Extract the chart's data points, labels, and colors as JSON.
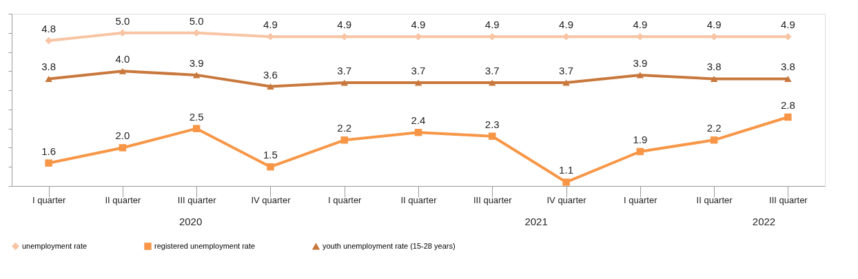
{
  "chart_data": {
    "type": "line",
    "categories": [
      "I quarter",
      "II quarter",
      "III quarter",
      "IV quarter",
      "I quarter",
      "II quarter",
      "III quarter",
      "IV quarter",
      "I quarter",
      "II quarter",
      "III quarter"
    ],
    "series": [
      {
        "name": "unemployment rate",
        "color": "#f8c4a4",
        "marker": "diamond",
        "values": [
          4.8,
          5.0,
          5.0,
          4.9,
          4.9,
          4.9,
          4.9,
          4.9,
          4.9,
          4.9,
          4.9
        ],
        "value_labels": [
          "4.8",
          "5.0",
          "5.0",
          "4.9",
          "4.9",
          "4.9",
          "4.9",
          "4.9",
          "4.9",
          "4.9",
          "4.9"
        ]
      },
      {
        "name": "registered unemployment rate",
        "color": "#f79646",
        "marker": "square",
        "values": [
          1.6,
          2.0,
          2.5,
          1.5,
          2.2,
          2.4,
          2.3,
          1.1,
          1.9,
          2.2,
          2.8
        ],
        "value_labels": [
          "1.6",
          "2.0",
          "2.5",
          "1.5",
          "2.2",
          "2.4",
          "2.3",
          "1.1",
          "1.9",
          "2.2",
          "2.8"
        ]
      },
      {
        "name": "youth unemployment rate (15-28 years)",
        "color": "#c8783c",
        "marker": "triangle",
        "values": [
          3.8,
          4.0,
          3.9,
          3.6,
          3.7,
          3.7,
          3.7,
          3.7,
          3.9,
          3.8,
          3.8
        ],
        "value_labels": [
          "3.8",
          "4.0",
          "3.9",
          "3.6",
          "3.7",
          "3.7",
          "3.7",
          "3.7",
          "3.9",
          "3.8",
          "3.8"
        ]
      }
    ],
    "ylim": [
      1.0,
      5.5
    ],
    "tick_labels": "x",
    "annotations": [
      "2020",
      "2021",
      "2022"
    ],
    "grid": false,
    "legend": "bottom",
    "line_style": "solid"
  }
}
